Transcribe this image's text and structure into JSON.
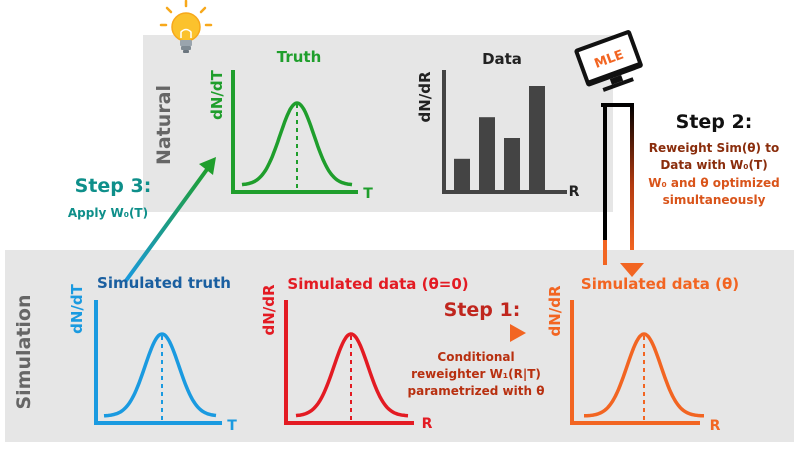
{
  "panels": {
    "natural_label": "Natural",
    "simulation_label": "Simulation"
  },
  "truth": {
    "title": "Truth",
    "ylabel": "dN/dT",
    "xlabel": "T"
  },
  "data": {
    "title": "Data",
    "ylabel": "dN/dR",
    "xlabel": "R",
    "bar_heights": [
      0.24,
      0.56,
      0.4,
      0.8
    ]
  },
  "sim_truth": {
    "title": "Simulated truth",
    "ylabel": "dN/dT",
    "xlabel": "T"
  },
  "sim_data0": {
    "title": "Simulated data (θ=0)",
    "ylabel": "dN/dR",
    "xlabel": "R"
  },
  "sim_data_theta": {
    "title": "Simulated data (θ)",
    "ylabel": "dN/dR",
    "xlabel": "R"
  },
  "mle": {
    "label": "MLE"
  },
  "step1": {
    "title": "Step 1:",
    "desc": [
      "Conditional",
      "reweighter W₁(R|T)",
      "parametrized with θ"
    ]
  },
  "step2": {
    "title": "Step 2:",
    "desc": [
      "Reweight Sim(θ) to",
      "Data with W₀(T)"
    ],
    "desc2": [
      "W₀ and θ optimized",
      "simultaneously"
    ]
  },
  "step3": {
    "title": "Step 3:",
    "desc": "Apply W₀(T)"
  },
  "colors": {
    "green": "#1f9e2c",
    "gray": "#444444",
    "blue": "#1a9ae0",
    "red": "#e31b23",
    "orange": "#f26522",
    "teal": "#0e8f8a",
    "brown": "#b23a10",
    "panel": "#e6e6e6"
  },
  "icons": {
    "bulb": "lightbulb-icon",
    "mle": "computer-monitor-icon"
  }
}
